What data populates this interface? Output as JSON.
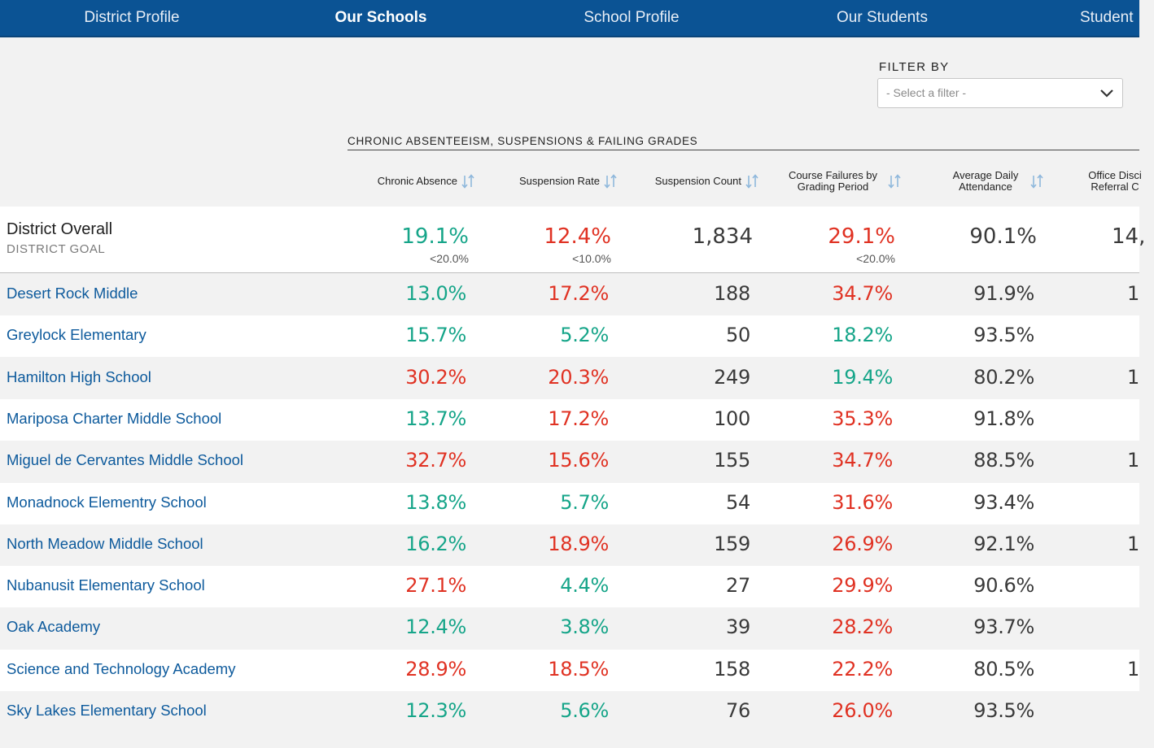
{
  "nav": {
    "items": [
      {
        "label": "District Profile",
        "active": false
      },
      {
        "label": "Our Schools",
        "active": true
      },
      {
        "label": "School Profile",
        "active": false
      },
      {
        "label": "Our Students",
        "active": false
      },
      {
        "label": "Student",
        "active": false
      }
    ]
  },
  "filter": {
    "label": "FILTER BY",
    "placeholder": "- Select a filter -"
  },
  "section_title": "CHRONIC ABSENTEEISM, SUSPENSIONS & FAILING GRADES",
  "columns": [
    {
      "label": "Chronic Absence"
    },
    {
      "label": "Suspension Rate"
    },
    {
      "label": "Suspension Count"
    },
    {
      "label": "Course Failures by Grading Period"
    },
    {
      "label": "Average Daily Attendance"
    },
    {
      "label": "Office Disci Referral C"
    }
  ],
  "district": {
    "title": "District Overall",
    "goal_label": "DISTRICT GOAL",
    "values": [
      {
        "value": "19.1%",
        "goal": "<20.0%",
        "status": "good"
      },
      {
        "value": "12.4%",
        "goal": "<10.0%",
        "status": "bad"
      },
      {
        "value": "1,834",
        "goal": "",
        "status": "neutral"
      },
      {
        "value": "29.1%",
        "goal": "<20.0%",
        "status": "bad"
      },
      {
        "value": "90.1%",
        "goal": "",
        "status": "neutral"
      },
      {
        "value": "14,",
        "goal": "",
        "status": "neutral"
      }
    ]
  },
  "schools": [
    {
      "name": "Desert Rock Middle",
      "chronic": "13.0%",
      "chronic_status": "good",
      "susp_rate": "17.2%",
      "susp_status": "bad",
      "susp_count": "188",
      "failures": "34.7%",
      "failures_status": "bad",
      "ada": "91.9%",
      "odr": "1"
    },
    {
      "name": "Greylock Elementary",
      "chronic": "15.7%",
      "chronic_status": "good",
      "susp_rate": "5.2%",
      "susp_status": "good",
      "susp_count": "50",
      "failures": "18.2%",
      "failures_status": "good",
      "ada": "93.5%",
      "odr": ""
    },
    {
      "name": "Hamilton High School",
      "chronic": "30.2%",
      "chronic_status": "bad",
      "susp_rate": "20.3%",
      "susp_status": "bad",
      "susp_count": "249",
      "failures": "19.4%",
      "failures_status": "good",
      "ada": "80.2%",
      "odr": "1"
    },
    {
      "name": "Mariposa Charter Middle School",
      "chronic": "13.7%",
      "chronic_status": "good",
      "susp_rate": "17.2%",
      "susp_status": "bad",
      "susp_count": "100",
      "failures": "35.3%",
      "failures_status": "bad",
      "ada": "91.8%",
      "odr": ""
    },
    {
      "name": "Miguel de Cervantes Middle School",
      "chronic": "32.7%",
      "chronic_status": "bad",
      "susp_rate": "15.6%",
      "susp_status": "bad",
      "susp_count": "155",
      "failures": "34.7%",
      "failures_status": "bad",
      "ada": "88.5%",
      "odr": "1"
    },
    {
      "name": "Monadnock Elementry School",
      "chronic": "13.8%",
      "chronic_status": "good",
      "susp_rate": "5.7%",
      "susp_status": "good",
      "susp_count": "54",
      "failures": "31.6%",
      "failures_status": "bad",
      "ada": "93.4%",
      "odr": ""
    },
    {
      "name": "North Meadow Middle School",
      "chronic": "16.2%",
      "chronic_status": "good",
      "susp_rate": "18.9%",
      "susp_status": "bad",
      "susp_count": "159",
      "failures": "26.9%",
      "failures_status": "bad",
      "ada": "92.1%",
      "odr": "1"
    },
    {
      "name": "Nubanusit Elementary School",
      "chronic": "27.1%",
      "chronic_status": "bad",
      "susp_rate": "4.4%",
      "susp_status": "good",
      "susp_count": "27",
      "failures": "29.9%",
      "failures_status": "bad",
      "ada": "90.6%",
      "odr": ""
    },
    {
      "name": "Oak Academy",
      "chronic": "12.4%",
      "chronic_status": "good",
      "susp_rate": "3.8%",
      "susp_status": "good",
      "susp_count": "39",
      "failures": "28.2%",
      "failures_status": "bad",
      "ada": "93.7%",
      "odr": ""
    },
    {
      "name": "Science and Technology Academy",
      "chronic": "28.9%",
      "chronic_status": "bad",
      "susp_rate": "18.5%",
      "susp_status": "bad",
      "susp_count": "158",
      "failures": "22.2%",
      "failures_status": "bad",
      "ada": "80.5%",
      "odr": "1"
    },
    {
      "name": "Sky Lakes Elementary School",
      "chronic": "12.3%",
      "chronic_status": "good",
      "susp_rate": "5.6%",
      "susp_status": "good",
      "susp_count": "76",
      "failures": "26.0%",
      "failures_status": "bad",
      "ada": "93.5%",
      "odr": ""
    }
  ],
  "colors": {
    "nav_bg": "#0b5394",
    "good": "#16a589",
    "bad": "#e03223",
    "link": "#0d5a9c",
    "sort_icon": "#8fb8dc"
  },
  "icons": {
    "sort": "sort-arrows-icon",
    "dropdown": "chevron-down-icon"
  }
}
